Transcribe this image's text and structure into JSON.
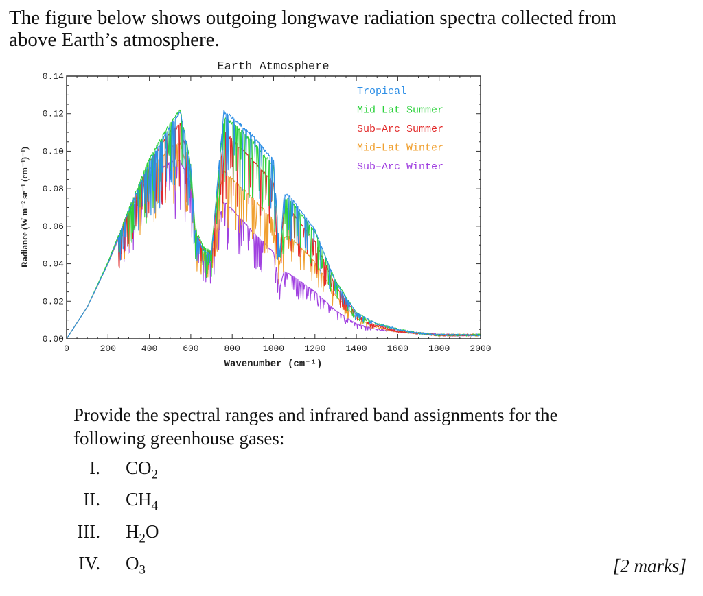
{
  "intro": {
    "line1": "The figure below shows outgoing longwave radiation spectra collected from",
    "line2": "above Earth’s atmosphere."
  },
  "question": {
    "line1": "Provide the spectral ranges and infrared band assignments for the",
    "line2": "following greenhouse gases:",
    "items": [
      {
        "numeral": "I.",
        "formula": "CO2"
      },
      {
        "numeral": "II.",
        "formula": "CH4"
      },
      {
        "numeral": "III.",
        "formula": "H2O"
      },
      {
        "numeral": "IV.",
        "formula": "O3"
      }
    ],
    "marks": "[2 marks]"
  },
  "chart_data": {
    "type": "line",
    "title": "Earth Atmosphere",
    "xlabel": "Wavenumber (cm⁻¹)",
    "ylabel": "Radiance (W m⁻² sr⁻¹ (cm⁻¹)⁻¹)",
    "xlim": [
      0,
      2000
    ],
    "ylim": [
      0,
      0.14
    ],
    "x_ticks": [
      "0",
      "200",
      "400",
      "600",
      "800",
      "1000",
      "1200",
      "1400",
      "1600",
      "1800",
      "2000"
    ],
    "y_ticks": [
      "0.00",
      "0.02",
      "0.04",
      "0.06",
      "0.08",
      "0.10",
      "0.12",
      "0.14"
    ],
    "legend_position": "top-right",
    "x": [
      0,
      100,
      200,
      300,
      400,
      500,
      550,
      600,
      620,
      660,
      700,
      740,
      760,
      800,
      900,
      1000,
      1030,
      1050,
      1070,
      1100,
      1200,
      1300,
      1400,
      1500,
      1600,
      1700,
      1800,
      1900,
      2000
    ],
    "series": [
      {
        "name": "Tropical",
        "color": "#2e8fe6",
        "values": [
          0,
          0.017,
          0.04,
          0.068,
          0.094,
          0.113,
          0.121,
          0.092,
          0.058,
          0.047,
          0.045,
          0.098,
          0.121,
          0.118,
          0.108,
          0.095,
          0.044,
          0.076,
          0.077,
          0.073,
          0.058,
          0.03,
          0.014,
          0.008,
          0.005,
          0.003,
          0.002,
          0.002,
          0.002
        ]
      },
      {
        "name": "Mid–Lat Summer",
        "color": "#2cd23c",
        "values": [
          0,
          0.017,
          0.041,
          0.069,
          0.096,
          0.115,
          0.122,
          0.093,
          0.06,
          0.049,
          0.047,
          0.096,
          0.118,
          0.115,
          0.105,
          0.092,
          0.045,
          0.074,
          0.075,
          0.071,
          0.057,
          0.031,
          0.014,
          0.008,
          0.005,
          0.003,
          0.002,
          0.002,
          0.002
        ]
      },
      {
        "name": "Sub–Arc Summer",
        "color": "#e22a2a",
        "values": [
          0,
          0.017,
          0.04,
          0.068,
          0.094,
          0.11,
          0.114,
          0.088,
          0.058,
          0.048,
          0.046,
          0.088,
          0.11,
          0.106,
          0.095,
          0.083,
          0.044,
          0.068,
          0.069,
          0.066,
          0.052,
          0.028,
          0.013,
          0.007,
          0.004,
          0.003,
          0.002,
          0.002,
          0.002
        ]
      },
      {
        "name": "Mid–Lat Winter",
        "color": "#f0a030",
        "values": [
          0,
          0.017,
          0.04,
          0.067,
          0.09,
          0.102,
          0.104,
          0.085,
          0.056,
          0.046,
          0.044,
          0.078,
          0.09,
          0.085,
          0.075,
          0.063,
          0.04,
          0.054,
          0.055,
          0.052,
          0.041,
          0.023,
          0.011,
          0.006,
          0.004,
          0.003,
          0.002,
          0.002,
          0.002
        ]
      },
      {
        "name": "Sub–Arc Winter",
        "color": "#a040e0",
        "values": [
          0,
          0.017,
          0.04,
          0.066,
          0.087,
          0.094,
          0.095,
          0.082,
          0.055,
          0.045,
          0.043,
          0.065,
          0.073,
          0.069,
          0.057,
          0.046,
          0.027,
          0.036,
          0.035,
          0.033,
          0.025,
          0.015,
          0.008,
          0.005,
          0.004,
          0.003,
          0.002,
          0.002,
          0.002
        ]
      }
    ]
  }
}
